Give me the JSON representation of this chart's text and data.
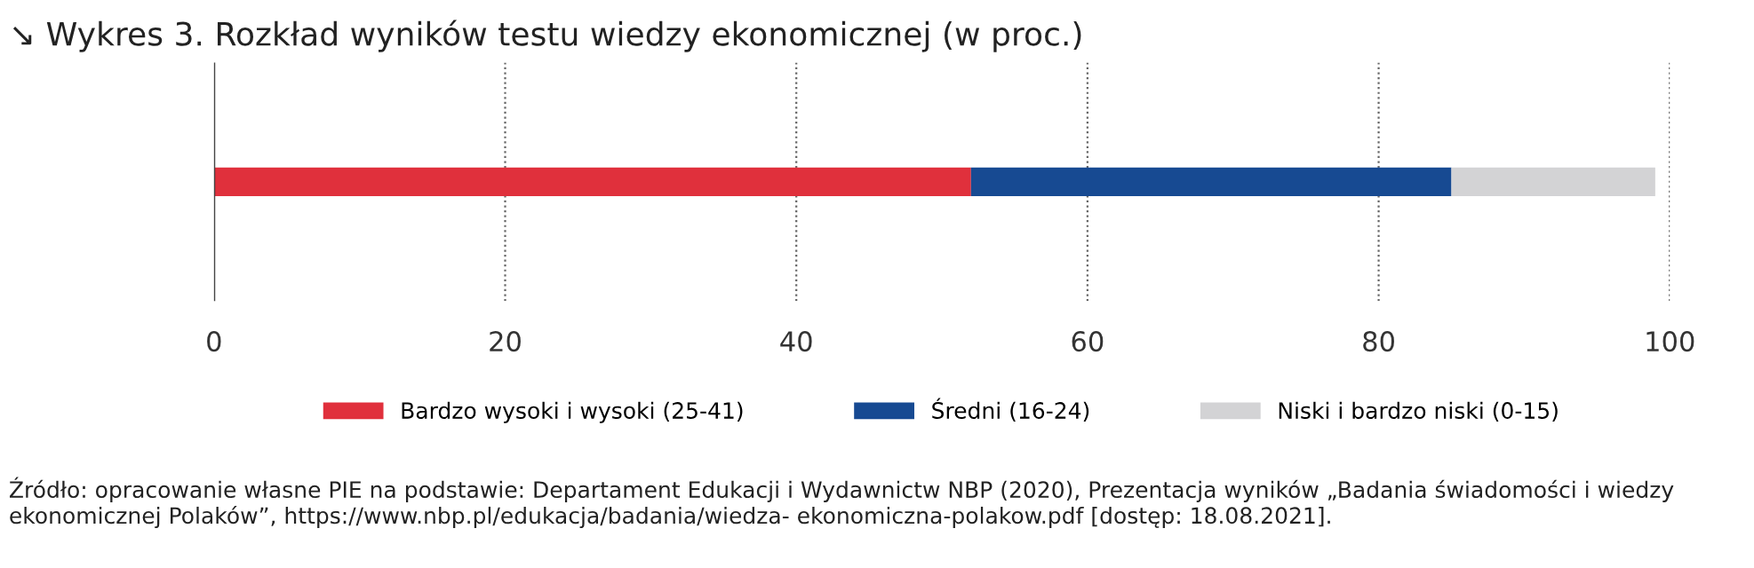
{
  "chart_data": {
    "type": "bar",
    "orientation": "horizontal",
    "stacked": true,
    "title": "↘ Wykres 3. Rozkład wyników testu wiedzy ekonomicznej (w proc.)",
    "categories": [
      null
    ],
    "series": [
      {
        "name": "Bardzo wysoki i wysoki (25-41)",
        "color": "#e0303c",
        "values": [
          52
        ]
      },
      {
        "name": "Średni (16-24)",
        "color": "#174a92",
        "values": [
          33
        ]
      },
      {
        "name": "Niski i bardzo niski (0-15)",
        "color": "#d3d3d5",
        "values": [
          14
        ]
      }
    ],
    "xlim": [
      0,
      100
    ],
    "xticks": [
      0,
      20,
      40,
      60,
      80,
      100
    ],
    "grid": "x",
    "legend": "bottom",
    "annotations": [
      "Źródło: opracowanie własne PIE na podstawie: Departament Edukacji i Wydawnictw NBP (2020), Prezentacja wyników „Badania świadomości i wiedzy ekonomicznej Polaków”, https://www.nbp.pl/edukacja/badania/wiedza- ekonomiczna-polakow.pdf [dostęp: 18.08.2021]."
    ]
  }
}
